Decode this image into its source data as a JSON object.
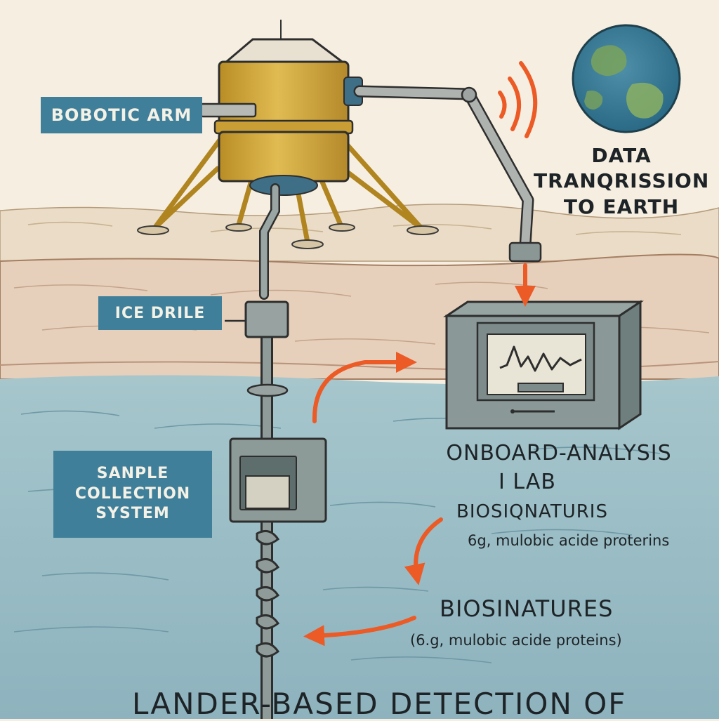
{
  "labels": {
    "robotic_arm": "BOBOTIC ARM",
    "ice_drill": "ICE DRILE",
    "sample_collection_line1": "SANPLE",
    "sample_collection_line2": "COLLECTION",
    "sample_collection_line3": "SYSTEM",
    "data_line1": "DATA",
    "data_line2": "TRANQRISSION",
    "data_line3": "TO EARTH",
    "lab_line1": "ONBOARD-ANALYSIS",
    "lab_line2": "I LAB",
    "bio1_title": "BIOSIQNATURIS",
    "bio1_sub": "6g, mulobic acide proterins",
    "bio2_title": "BIOSINATURES",
    "bio2_sub": "(6.g, mulobic acide  proteins)",
    "footer": "LANDER-BASED DETECTION OF"
  },
  "colors": {
    "background": "#f6efe1",
    "label_bg": "#3f7f99",
    "arrow": "#ec5a26",
    "lander_gold": "#d2a93a",
    "ocean": "#8fb5c0",
    "instrument": "#7f9192"
  }
}
